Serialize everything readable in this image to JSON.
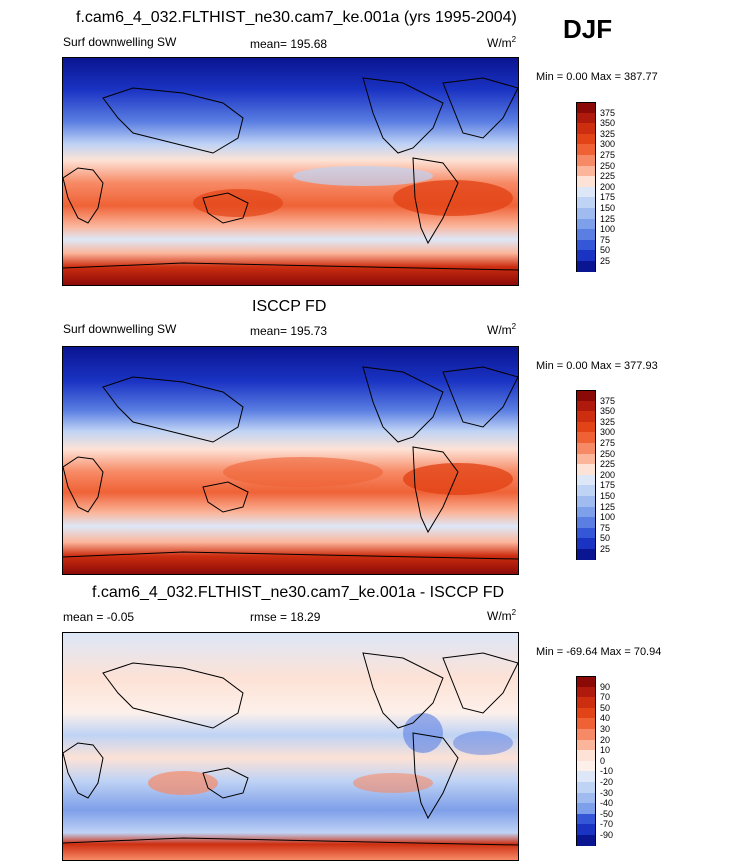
{
  "season": "DJF",
  "panels": [
    {
      "title": "f.cam6_4_032.FLTHIST_ne30.cam7_ke.001a (yrs 1995-2004)",
      "left_label": "Surf downwelling SW",
      "center_label": "mean= 195.68",
      "units": "W/m",
      "units_sup": "2",
      "minmax": "Min =   0.00 Max = 387.77",
      "cbar_labels": [
        "375",
        "350",
        "325",
        "300",
        "275",
        "250",
        "225",
        "200",
        "175",
        "150",
        "125",
        "100",
        "75",
        "50",
        "25"
      ],
      "cbar_colors": [
        "#8b0a08",
        "#b01a0c",
        "#cd2e10",
        "#e24417",
        "#ef6236",
        "#f78a66",
        "#fbb59b",
        "#fde2d6",
        "#dde7f8",
        "#bfd3f5",
        "#9fbbf0",
        "#7e9fe9",
        "#5a7ee2",
        "#3457d8",
        "#1a33c3",
        "#0a1591"
      ]
    },
    {
      "title": "ISCCP FD",
      "left_label": "Surf downwelling SW",
      "center_label": "mean= 195.73",
      "units": "W/m",
      "units_sup": "2",
      "minmax": "Min =   0.00 Max = 377.93",
      "cbar_labels": [
        "375",
        "350",
        "325",
        "300",
        "275",
        "250",
        "225",
        "200",
        "175",
        "150",
        "125",
        "100",
        "75",
        "50",
        "25"
      ],
      "cbar_colors": [
        "#8b0a08",
        "#b01a0c",
        "#cd2e10",
        "#e24417",
        "#ef6236",
        "#f78a66",
        "#fbb59b",
        "#fde2d6",
        "#dde7f8",
        "#bfd3f5",
        "#9fbbf0",
        "#7e9fe9",
        "#5a7ee2",
        "#3457d8",
        "#1a33c3",
        "#0a1591"
      ]
    },
    {
      "title": "f.cam6_4_032.FLTHIST_ne30.cam7_ke.001a - ISCCP FD",
      "left_label": "mean =  -0.05",
      "center_label": "rmse =  18.29",
      "units": "W/m",
      "units_sup": "2",
      "minmax": "Min = -69.64 Max =  70.94",
      "cbar_labels": [
        "90",
        "70",
        "50",
        "40",
        "30",
        "20",
        "10",
        "0",
        "-10",
        "-20",
        "-30",
        "-40",
        "-50",
        "-70",
        "-90"
      ],
      "cbar_colors": [
        "#8b0a08",
        "#b01a0c",
        "#cd2e10",
        "#e24417",
        "#ef6236",
        "#f78a66",
        "#fbb59b",
        "#fde2d6",
        "#fdf0ea",
        "#dde7f8",
        "#bfd3f5",
        "#9fbbf0",
        "#7e9fe9",
        "#3457d8",
        "#1a33c3",
        "#0a1591"
      ]
    }
  ]
}
